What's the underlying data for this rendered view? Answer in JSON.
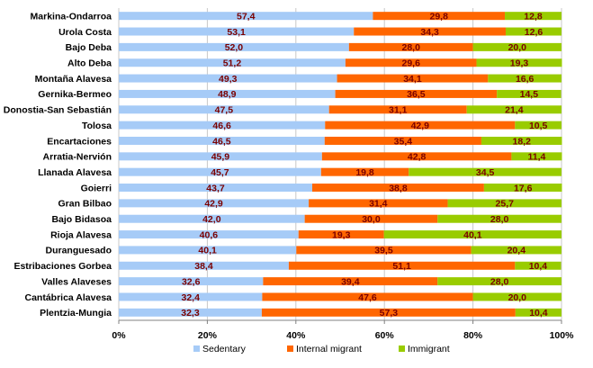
{
  "chart_data": {
    "type": "bar",
    "orientation": "horizontal",
    "stacked": "percent",
    "title": "",
    "xlabel": "",
    "ylabel": "",
    "xlim": [
      0,
      100
    ],
    "ticks": [
      "0%",
      "20%",
      "40%",
      "60%",
      "80%",
      "100%"
    ],
    "tick_values": [
      0,
      20,
      40,
      60,
      80,
      100
    ],
    "grid": true,
    "legend_position": "bottom",
    "categories": [
      "Markina-Ondarroa",
      "Urola Costa",
      "Bajo Deba",
      "Alto Deba",
      "Montaña Alavesa",
      "Gernika-Bermeo",
      "Donostia-San Sebastián",
      "Tolosa",
      "Encartaciones",
      "Arratia-Nervión",
      "Llanada Alavesa",
      "Goierri",
      "Gran Bilbao",
      "Bajo Bidasoa",
      "Rioja Alavesa",
      "Duranguesado",
      "Estribaciones Gorbea",
      "Valles Alaveses",
      "Cantábrica Alavesa",
      "Plentzia-Mungia"
    ],
    "series": [
      {
        "name": "Sedentary",
        "color": "#a6cbf7",
        "values": [
          57.4,
          53.1,
          52.0,
          51.2,
          49.3,
          48.9,
          47.5,
          46.6,
          46.5,
          45.9,
          45.7,
          43.7,
          42.9,
          42.0,
          40.6,
          40.1,
          38.4,
          32.6,
          32.4,
          32.3
        ],
        "labels": [
          "57,4",
          "53,1",
          "52,0",
          "51,2",
          "49,3",
          "48,9",
          "47,5",
          "46,6",
          "46,5",
          "45,9",
          "45,7",
          "43,7",
          "42,9",
          "42,0",
          "40,6",
          "40,1",
          "38,4",
          "32,6",
          "32,4",
          "32,3"
        ]
      },
      {
        "name": "Internal migrant",
        "color": "#ff6600",
        "values": [
          29.8,
          34.3,
          28.0,
          29.6,
          34.1,
          36.5,
          31.1,
          42.9,
          35.4,
          42.8,
          19.8,
          38.8,
          31.4,
          30.0,
          19.3,
          39.5,
          51.1,
          39.4,
          47.6,
          57.3
        ],
        "labels": [
          "29,8",
          "34,3",
          "28,0",
          "29,6",
          "34,1",
          "36,5",
          "31,1",
          "42,9",
          "35,4",
          "42,8",
          "19,8",
          "38,8",
          "31,4",
          "30,0",
          "19,3",
          "39,5",
          "51,1",
          "39,4",
          "47,6",
          "57,3"
        ]
      },
      {
        "name": "Immigrant",
        "color": "#99cc00",
        "values": [
          12.8,
          12.6,
          20.0,
          19.3,
          16.6,
          14.5,
          21.4,
          10.5,
          18.2,
          11.4,
          34.5,
          17.6,
          25.7,
          28.0,
          40.1,
          20.4,
          10.4,
          28.0,
          20.0,
          10.4
        ],
        "labels": [
          "12,8",
          "12,6",
          "20,0",
          "19,3",
          "16,6",
          "14,5",
          "21,4",
          "10,5",
          "18,2",
          "11,4",
          "34,5",
          "17,6",
          "25,7",
          "28,0",
          "40,1",
          "20,4",
          "10,4",
          "28,0",
          "20,0",
          "10,4"
        ]
      }
    ]
  }
}
